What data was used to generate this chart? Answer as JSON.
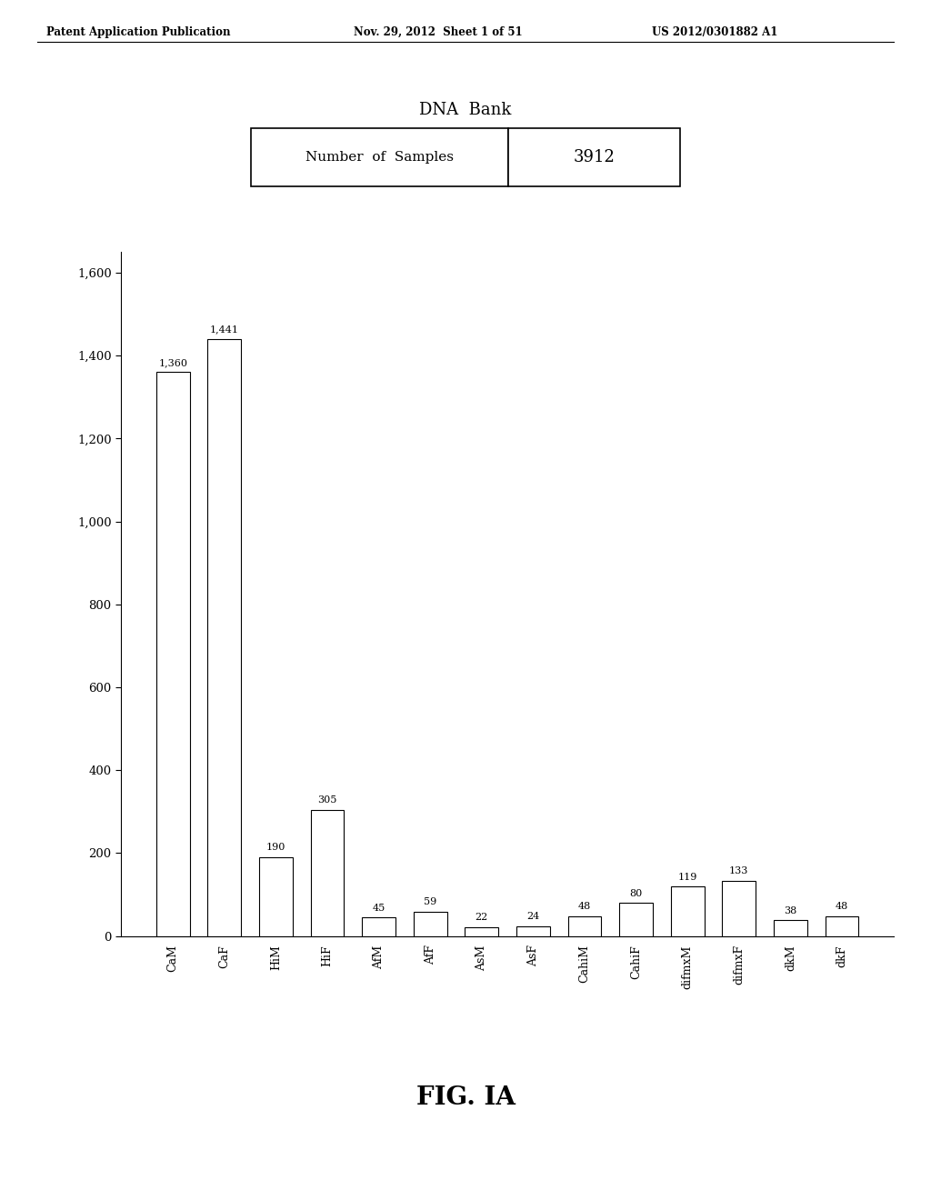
{
  "categories": [
    "CaM",
    "CaF",
    "HiM",
    "HiF",
    "AfM",
    "AfF",
    "AsM",
    "AsF",
    "CahiM",
    "CahiF",
    "difmxM",
    "difmxF",
    "dkM",
    "dkF"
  ],
  "values": [
    1360,
    1441,
    190,
    305,
    45,
    59,
    22,
    24,
    48,
    80,
    119,
    133,
    38,
    48
  ],
  "bar_color": "#ffffff",
  "bar_edge_color": "#000000",
  "background_color": "#ffffff",
  "title": "DNA  Bank",
  "samples_label": "Number  of  Samples",
  "samples_value": "3912",
  "fig_label": "FIG. IA",
  "header_left": "Patent Application Publication",
  "header_mid": "Nov. 29, 2012  Sheet 1 of 51",
  "header_right": "US 2012/0301882 A1",
  "ylim": [
    0,
    1650
  ],
  "yticks": [
    0,
    200,
    400,
    600,
    800,
    1000,
    1200,
    1400,
    1600
  ],
  "ytick_labels": [
    "0",
    "200",
    "400",
    "600",
    "800",
    "1,000",
    "1,200",
    "1,400",
    "1,600"
  ]
}
